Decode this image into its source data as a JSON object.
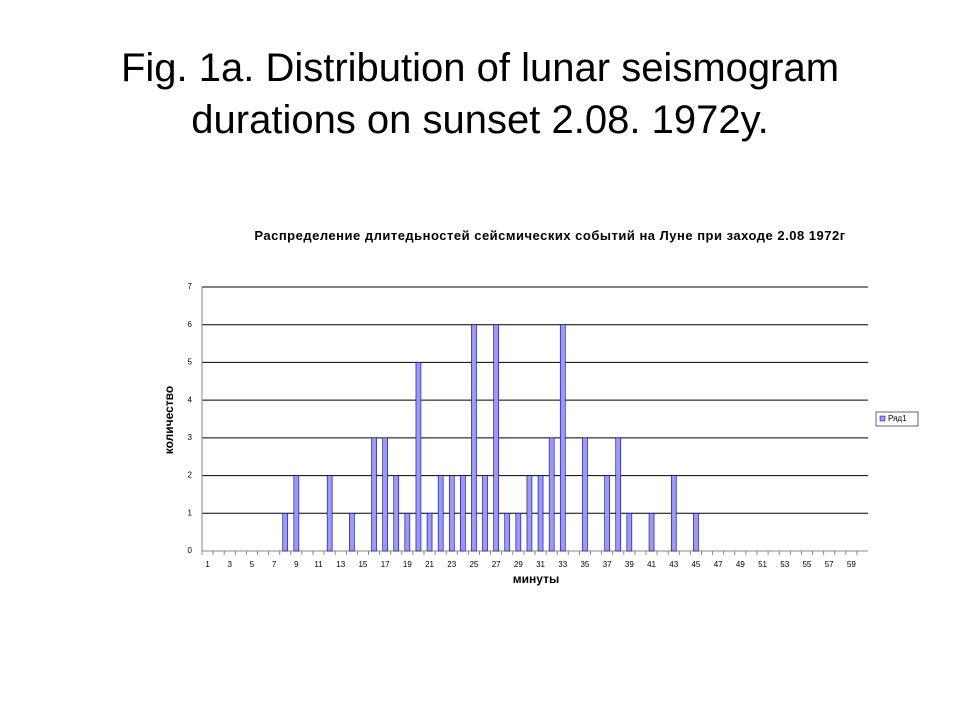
{
  "slide_title": "Fig. 1a. Distribution of lunar seismogram durations  on sunset 2.08. 1972y.",
  "chart_data": {
    "type": "bar",
    "title": "Распределение длитедьностей сейсмических событий на Луне при заходе 2.08 1972г",
    "x_label": "минуты",
    "y_label": "количество",
    "categories": [
      "1",
      null,
      "3",
      null,
      "5",
      null,
      "7",
      null,
      "9",
      null,
      "11",
      null,
      "13",
      null,
      "15",
      null,
      "17",
      null,
      "19",
      null,
      "21",
      null,
      "23",
      null,
      "25",
      null,
      "27",
      null,
      "29",
      null,
      "31",
      null,
      "33",
      null,
      "35",
      null,
      "37",
      null,
      "39",
      null,
      "41",
      null,
      "43",
      null,
      "45",
      null,
      "47",
      null,
      "49",
      null,
      "51",
      null,
      "53",
      null,
      "55",
      null,
      "57",
      null,
      "59",
      null
    ],
    "series": [
      {
        "name": "Ряд1",
        "color": "#9999ff",
        "values": [
          0,
          0,
          0,
          0,
          0,
          0,
          0,
          1,
          2,
          0,
          0,
          2,
          0,
          1,
          0,
          3,
          3,
          2,
          1,
          5,
          1,
          2,
          2,
          2,
          6,
          2,
          6,
          1,
          1,
          2,
          2,
          3,
          6,
          0,
          3,
          0,
          2,
          3,
          1,
          0,
          1,
          0,
          2,
          0,
          1,
          0,
          0,
          0,
          0,
          0,
          0,
          0,
          0,
          0,
          0,
          0,
          0,
          0,
          0,
          0
        ]
      }
    ],
    "ylim": [
      0,
      7
    ],
    "yticks": [
      0,
      1,
      2,
      3,
      4,
      5,
      6,
      7
    ],
    "grid": true,
    "legend": "right"
  }
}
